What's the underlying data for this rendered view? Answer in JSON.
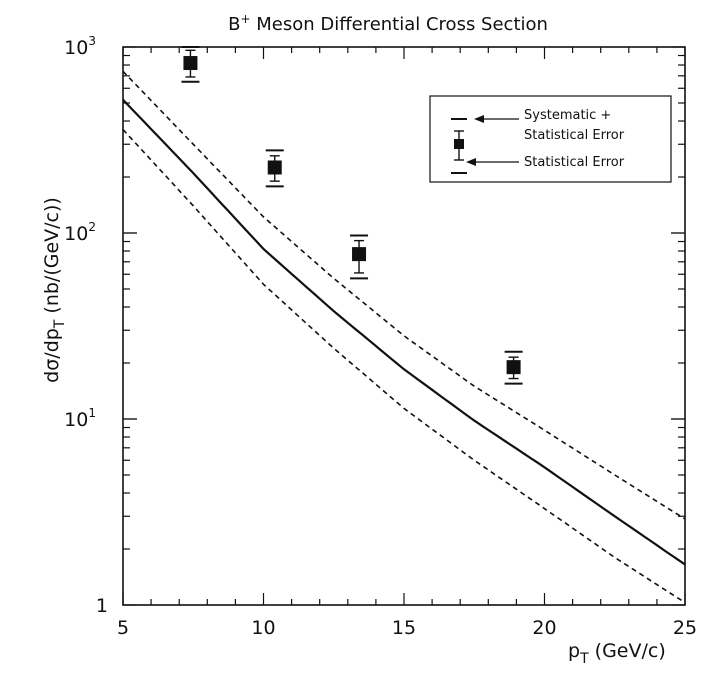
{
  "chart_data": {
    "type": "scatter",
    "title": "B⁺ Meson Differential Cross Section",
    "title_parts": {
      "base": "B",
      "sup": "+",
      "rest": " Meson Differential Cross Section"
    },
    "xlabel": "pT (GeV/c)",
    "xlabel_parts": {
      "base": "p",
      "sub": "T",
      "rest": " (GeV/c)"
    },
    "ylabel": "dσ/dpT (nb/(GeV/c))",
    "ylabel_parts": {
      "base": "dσ/dp",
      "sub": "T",
      "rest": " (nb/(GeV/c))"
    },
    "xlim": [
      5,
      25
    ],
    "ylim": [
      1,
      1000
    ],
    "yscale": "log",
    "grid": false,
    "legend_position": "top-right",
    "x_ticks": [
      "5",
      "10",
      "15",
      "20",
      "25"
    ],
    "x_tick_values": [
      5,
      10,
      15,
      20,
      25
    ],
    "y_ticks": [
      {
        "value": 1000,
        "base": "10",
        "sup": "3"
      },
      {
        "value": 100,
        "base": "10",
        "sup": "2"
      },
      {
        "value": 10,
        "base": "10",
        "sup": "1"
      },
      {
        "value": 1,
        "base": "1",
        "sup": ""
      }
    ],
    "points": [
      {
        "x": 7.4,
        "y": 820,
        "stat_low": 690,
        "stat_high": 960,
        "sys_low": 650,
        "sys_high": 1000
      },
      {
        "x": 10.4,
        "y": 225,
        "stat_low": 190,
        "stat_high": 260,
        "sys_low": 178,
        "sys_high": 278
      },
      {
        "x": 13.4,
        "y": 77,
        "stat_low": 61,
        "stat_high": 91,
        "sys_low": 57,
        "sys_high": 97
      },
      {
        "x": 18.9,
        "y": 19,
        "stat_low": 16.5,
        "stat_high": 21.5,
        "sys_low": 15.5,
        "sys_high": 23
      }
    ],
    "curves": [
      {
        "style": "solid",
        "x": [
          5,
          7.5,
          10,
          12.5,
          15,
          17.5,
          20,
          22.5,
          25
        ],
        "y": [
          520,
          210,
          82,
          38,
          18.5,
          9.8,
          5.5,
          3.0,
          1.65
        ]
      },
      {
        "style": "dashed",
        "x": [
          5,
          7.5,
          10,
          12.5,
          15,
          17.5,
          20,
          22.5,
          25
        ],
        "y": [
          740,
          300,
          122,
          57,
          28,
          15,
          8.7,
          5.0,
          2.9
        ]
      },
      {
        "style": "dashed",
        "x": [
          5,
          7.5,
          10,
          12.5,
          15,
          17.5,
          20,
          22.5,
          25
        ],
        "y": [
          360,
          140,
          53,
          24,
          11.4,
          6.0,
          3.3,
          1.8,
          1.03
        ]
      }
    ],
    "legend": {
      "systematic_line1": "Systematic +",
      "systematic_line2": "Statistical Error",
      "statistical": "Statistical Error"
    }
  }
}
